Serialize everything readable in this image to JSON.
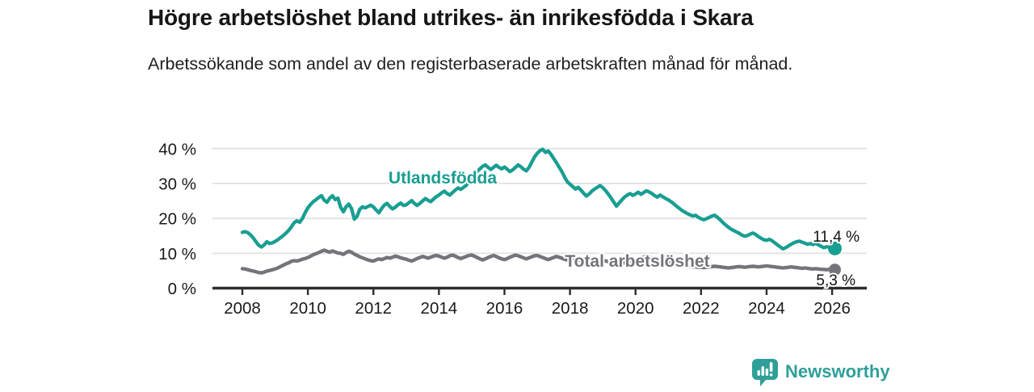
{
  "header": {
    "title": "Högre arbetslöshet bland utrikes- än inrikesfödda i Skara",
    "subtitle": "Arbetssökande som andel av den registerbaserade arbetskraften månad för månad."
  },
  "branding": {
    "name": "Newsworthy",
    "logo_icon": "newsworthy-chart-bubble-icon",
    "color": "#2f9f99"
  },
  "chart_data": {
    "type": "line",
    "title": "Högre arbetslöshet bland utrikes- än inrikesfödda i Skara",
    "xlabel": "",
    "ylabel": "",
    "grid": "horizontal",
    "legend_position": "inline-labels",
    "x_axis": {
      "tick_labels": [
        "2008",
        "2010",
        "2012",
        "2014",
        "2016",
        "2018",
        "2020",
        "2022",
        "2024",
        "2026"
      ],
      "tick_values": [
        2008,
        2010,
        2012,
        2014,
        2016,
        2018,
        2020,
        2022,
        2024,
        2026
      ]
    },
    "y_axis": {
      "tick_labels": [
        "0 %",
        "10 %",
        "20 %",
        "30 %",
        "40 %"
      ],
      "tick_values": [
        0,
        10,
        20,
        30,
        40
      ],
      "ylim": [
        0,
        43
      ]
    },
    "frequency": "monthly",
    "start_year": 2008,
    "points_per_year": 12,
    "series": [
      {
        "name": "Total arbetslöshet",
        "color": "#74747b",
        "end_label": "5,3 %",
        "last_value": 5.3,
        "values": [
          5.6,
          5.5,
          5.3,
          5.1,
          4.9,
          4.7,
          4.5,
          4.4,
          4.6,
          4.9,
          5.1,
          5.3,
          5.5,
          5.8,
          6.2,
          6.6,
          7.0,
          7.3,
          7.7,
          7.9,
          7.8,
          8.0,
          8.3,
          8.5,
          8.8,
          9.2,
          9.6,
          9.9,
          10.2,
          10.6,
          10.9,
          10.6,
          10.3,
          10.7,
          10.4,
          10.1,
          10.0,
          9.7,
          10.2,
          10.6,
          10.3,
          9.8,
          9.4,
          9.0,
          8.7,
          8.4,
          8.1,
          7.9,
          7.8,
          8.1,
          8.4,
          8.2,
          8.5,
          8.8,
          8.6,
          8.9,
          9.2,
          9.0,
          8.7,
          8.5,
          8.3,
          8.0,
          7.8,
          8.1,
          8.5,
          8.8,
          9.1,
          8.9,
          8.6,
          8.9,
          9.2,
          9.4,
          9.2,
          8.9,
          8.6,
          8.9,
          9.3,
          9.5,
          9.2,
          8.8,
          8.5,
          8.8,
          9.1,
          9.4,
          9.5,
          9.2,
          8.8,
          8.4,
          8.1,
          8.4,
          8.8,
          9.1,
          9.4,
          9.1,
          8.7,
          8.4,
          8.2,
          8.5,
          8.9,
          9.2,
          9.5,
          9.3,
          9.0,
          8.7,
          8.4,
          8.7,
          9.0,
          9.3,
          9.4,
          9.1,
          8.8,
          8.5,
          8.2,
          8.5,
          8.8,
          9.1,
          8.9,
          8.6,
          8.3,
          8.1,
          8.3,
          8.6,
          8.4,
          8.1,
          7.9,
          7.7,
          7.9,
          8.2,
          8.0,
          7.8,
          7.6,
          7.8,
          8.0,
          7.8,
          7.6,
          7.4,
          7.6,
          7.8,
          7.6,
          7.4,
          7.2,
          7.4,
          7.6,
          7.8,
          8.0,
          8.3,
          8.6,
          8.9,
          9.1,
          8.9,
          8.7,
          8.5,
          8.3,
          8.1,
          7.9,
          7.7,
          7.5,
          7.3,
          7.1,
          6.9,
          6.7,
          6.5,
          6.4,
          6.3,
          6.2,
          6.1,
          6.1,
          6.0,
          6.0,
          5.9,
          6.0,
          6.1,
          6.2,
          6.3,
          6.2,
          6.1,
          6.0,
          5.9,
          5.8,
          5.9,
          6.0,
          6.1,
          6.2,
          6.1,
          6.0,
          6.1,
          6.2,
          6.3,
          6.2,
          6.1,
          6.2,
          6.3,
          6.4,
          6.3,
          6.2,
          6.1,
          6.0,
          5.9,
          5.8,
          5.9,
          6.0,
          6.1,
          6.0,
          5.9,
          5.8,
          5.7,
          5.8,
          5.7,
          5.6,
          5.5,
          5.6,
          5.5,
          5.4,
          5.4,
          5.3,
          5.4,
          5.3,
          5.3
        ]
      },
      {
        "name": "Utlandsfödda",
        "color": "#189e92",
        "end_label": "11,4 %",
        "last_value": 11.4,
        "values": [
          16.0,
          16.2,
          15.9,
          15.3,
          14.4,
          13.3,
          12.3,
          11.8,
          12.4,
          13.3,
          12.8,
          13.0,
          13.4,
          13.9,
          14.5,
          15.1,
          15.8,
          16.6,
          17.6,
          18.8,
          19.3,
          18.9,
          20.0,
          21.6,
          23.0,
          24.0,
          24.8,
          25.4,
          26.0,
          26.5,
          25.2,
          24.6,
          25.8,
          26.5,
          25.4,
          25.8,
          23.2,
          21.9,
          23.3,
          24.1,
          22.8,
          19.8,
          20.6,
          22.6,
          23.3,
          23.0,
          23.4,
          23.8,
          23.3,
          22.4,
          21.6,
          22.8,
          23.8,
          24.3,
          23.4,
          22.7,
          23.2,
          23.9,
          24.4,
          23.7,
          23.9,
          24.5,
          25.1,
          24.3,
          23.7,
          24.3,
          25.0,
          25.7,
          25.2,
          24.8,
          25.5,
          26.2,
          26.7,
          27.3,
          27.8,
          27.1,
          26.7,
          27.4,
          28.1,
          28.7,
          28.3,
          28.9,
          29.5,
          30.3,
          31.4,
          32.6,
          33.5,
          34.2,
          34.9,
          35.3,
          34.6,
          34.0,
          34.6,
          35.2,
          34.6,
          34.2,
          34.7,
          34.1,
          33.4,
          33.9,
          34.6,
          35.3,
          34.8,
          34.1,
          33.6,
          34.6,
          36.1,
          37.6,
          38.6,
          39.4,
          39.8,
          38.9,
          39.3,
          38.4,
          37.2,
          36.0,
          34.7,
          33.4,
          31.9,
          30.5,
          29.8,
          29.1,
          28.4,
          28.9,
          28.1,
          27.2,
          26.4,
          27.0,
          27.8,
          28.4,
          28.9,
          29.4,
          28.8,
          28.0,
          27.0,
          25.9,
          24.7,
          23.5,
          24.4,
          25.3,
          26.1,
          26.7,
          27.1,
          26.6,
          27.0,
          27.5,
          26.9,
          27.4,
          27.9,
          27.6,
          27.1,
          26.5,
          26.1,
          26.7,
          26.2,
          25.7,
          25.3,
          24.8,
          24.2,
          23.5,
          22.9,
          22.3,
          21.8,
          21.4,
          21.0,
          20.7,
          20.9,
          20.3,
          19.9,
          19.6,
          19.9,
          20.3,
          20.7,
          20.9,
          20.3,
          19.6,
          18.8,
          18.1,
          17.5,
          16.9,
          16.5,
          16.1,
          15.7,
          15.2,
          14.9,
          15.1,
          15.5,
          15.8,
          15.4,
          14.8,
          14.3,
          13.9,
          13.7,
          14.0,
          13.6,
          13.0,
          12.4,
          11.8,
          11.3,
          11.6,
          12.1,
          12.6,
          13.0,
          13.3,
          13.5,
          13.2,
          12.9,
          12.6,
          12.8,
          12.5,
          12.9,
          12.4,
          12.0,
          11.6,
          11.9,
          11.7,
          11.5,
          11.4
        ]
      }
    ]
  }
}
